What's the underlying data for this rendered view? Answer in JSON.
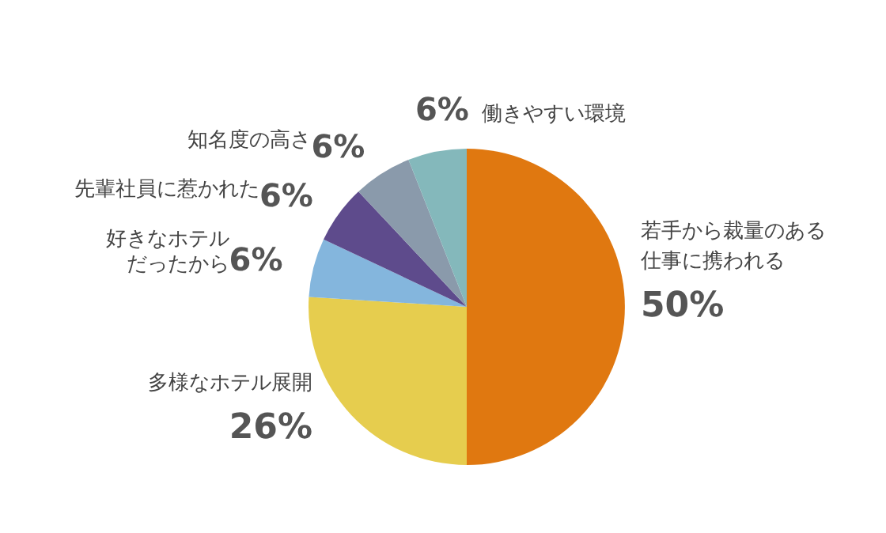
{
  "chart_data": {
    "type": "pie",
    "categories": [
      "若手から裁量のある仕事に携われる",
      "多様なホテル展開",
      "好きなホテルだったから",
      "先輩社員に惹かれた",
      "知名度の高さ",
      "働きやすい環境"
    ],
    "values": [
      50,
      26,
      6,
      6,
      6,
      6
    ],
    "colors": [
      "#e07810",
      "#e6cd4e",
      "#84b6dd",
      "#5e4b8c",
      "#8a9aab",
      "#84b8bb"
    ],
    "value_labels": [
      "50%",
      "26%",
      "6%",
      "6%",
      "6%",
      "6%"
    ]
  }
}
